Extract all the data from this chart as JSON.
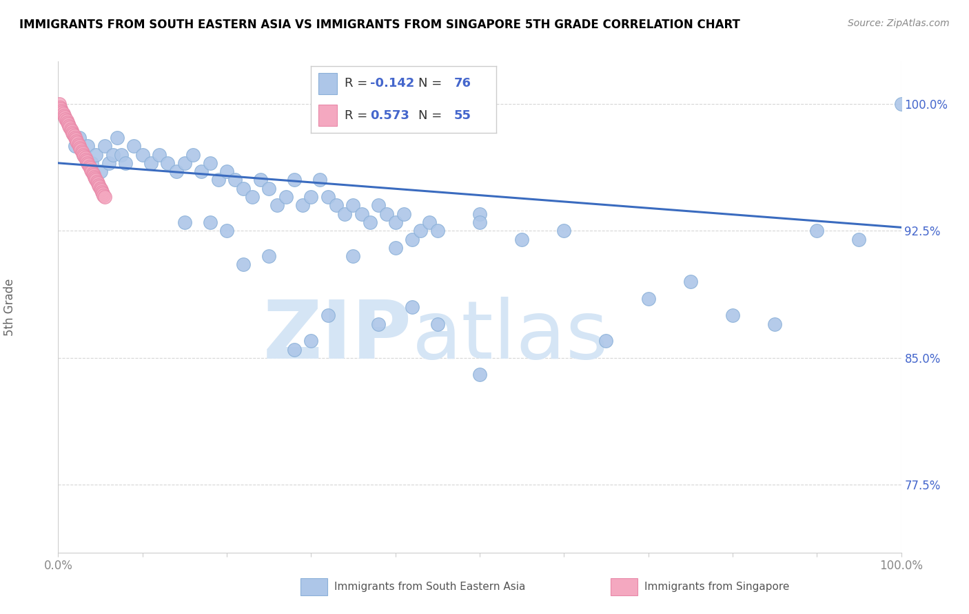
{
  "title": "IMMIGRANTS FROM SOUTH EASTERN ASIA VS IMMIGRANTS FROM SINGAPORE 5TH GRADE CORRELATION CHART",
  "source": "Source: ZipAtlas.com",
  "ylabel": "5th Grade",
  "yticks": [
    0.775,
    0.85,
    0.925,
    1.0
  ],
  "ytick_labels": [
    "77.5%",
    "85.0%",
    "92.5%",
    "100.0%"
  ],
  "xlim": [
    0.0,
    1.0
  ],
  "ylim": [
    0.735,
    1.025
  ],
  "xtick_positions": [
    0.0,
    1.0
  ],
  "xtick_labels": [
    "0.0%",
    "100.0%"
  ],
  "legend_blue_r": "-0.142",
  "legend_blue_n": "76",
  "legend_pink_r": "0.573",
  "legend_pink_n": "55",
  "blue_color": "#adc6e8",
  "pink_color": "#f4a8c0",
  "line_color": "#3a6bbf",
  "watermark_zip": "ZIP",
  "watermark_atlas": "atlas",
  "watermark_color": "#d5e5f5",
  "legend_r_color": "#4466cc",
  "legend_n_color": "#4466cc",
  "blue_scatter_x": [
    0.02,
    0.025,
    0.03,
    0.035,
    0.04,
    0.045,
    0.05,
    0.055,
    0.06,
    0.065,
    0.07,
    0.075,
    0.08,
    0.09,
    0.1,
    0.11,
    0.12,
    0.13,
    0.14,
    0.15,
    0.16,
    0.17,
    0.18,
    0.19,
    0.2,
    0.21,
    0.22,
    0.23,
    0.24,
    0.25,
    0.26,
    0.27,
    0.28,
    0.29,
    0.3,
    0.31,
    0.32,
    0.33,
    0.34,
    0.35,
    0.36,
    0.37,
    0.38,
    0.39,
    0.4,
    0.41,
    0.42,
    0.43,
    0.44,
    0.45,
    0.5,
    0.5,
    0.55,
    0.6,
    0.65,
    0.7,
    0.75,
    0.8,
    0.85,
    0.9,
    0.95,
    1.0,
    0.3,
    0.32,
    0.38,
    0.42,
    0.25,
    0.28,
    0.2,
    0.22,
    0.15,
    0.18,
    0.35,
    0.4,
    0.45,
    0.5
  ],
  "blue_scatter_y": [
    0.975,
    0.98,
    0.97,
    0.975,
    0.965,
    0.97,
    0.96,
    0.975,
    0.965,
    0.97,
    0.98,
    0.97,
    0.965,
    0.975,
    0.97,
    0.965,
    0.97,
    0.965,
    0.96,
    0.965,
    0.97,
    0.96,
    0.965,
    0.955,
    0.96,
    0.955,
    0.95,
    0.945,
    0.955,
    0.95,
    0.94,
    0.945,
    0.955,
    0.94,
    0.945,
    0.955,
    0.945,
    0.94,
    0.935,
    0.94,
    0.935,
    0.93,
    0.94,
    0.935,
    0.93,
    0.935,
    0.92,
    0.925,
    0.93,
    0.925,
    0.935,
    0.93,
    0.92,
    0.925,
    0.86,
    0.885,
    0.895,
    0.875,
    0.87,
    0.925,
    0.92,
    1.0,
    0.86,
    0.875,
    0.87,
    0.88,
    0.91,
    0.855,
    0.925,
    0.905,
    0.93,
    0.93,
    0.91,
    0.915,
    0.87,
    0.84
  ],
  "pink_scatter_x": [
    0.001,
    0.002,
    0.003,
    0.004,
    0.005,
    0.006,
    0.007,
    0.008,
    0.009,
    0.01,
    0.011,
    0.012,
    0.013,
    0.014,
    0.015,
    0.016,
    0.017,
    0.018,
    0.019,
    0.02,
    0.021,
    0.022,
    0.023,
    0.024,
    0.025,
    0.026,
    0.027,
    0.028,
    0.029,
    0.03,
    0.031,
    0.032,
    0.033,
    0.034,
    0.035,
    0.036,
    0.037,
    0.038,
    0.039,
    0.04,
    0.041,
    0.042,
    0.043,
    0.044,
    0.045,
    0.046,
    0.047,
    0.048,
    0.049,
    0.05,
    0.051,
    0.052,
    0.053,
    0.054,
    0.055
  ],
  "pink_scatter_y": [
    1.0,
    0.998,
    0.997,
    0.996,
    0.995,
    0.994,
    0.993,
    0.992,
    0.991,
    0.99,
    0.989,
    0.988,
    0.987,
    0.986,
    0.985,
    0.984,
    0.983,
    0.982,
    0.981,
    0.98,
    0.979,
    0.978,
    0.977,
    0.976,
    0.975,
    0.974,
    0.973,
    0.972,
    0.971,
    0.97,
    0.969,
    0.968,
    0.967,
    0.966,
    0.965,
    0.964,
    0.963,
    0.962,
    0.961,
    0.96,
    0.959,
    0.958,
    0.957,
    0.956,
    0.955,
    0.954,
    0.953,
    0.952,
    0.951,
    0.95,
    0.949,
    0.948,
    0.947,
    0.946,
    0.945
  ],
  "blue_line_x": [
    0.0,
    1.0
  ],
  "blue_line_y_start": 0.965,
  "blue_line_y_end": 0.927,
  "grid_color": "#cccccc",
  "tick_color": "#888888",
  "bottom_legend_blue_label": "Immigrants from South Eastern Asia",
  "bottom_legend_pink_label": "Immigrants from Singapore"
}
